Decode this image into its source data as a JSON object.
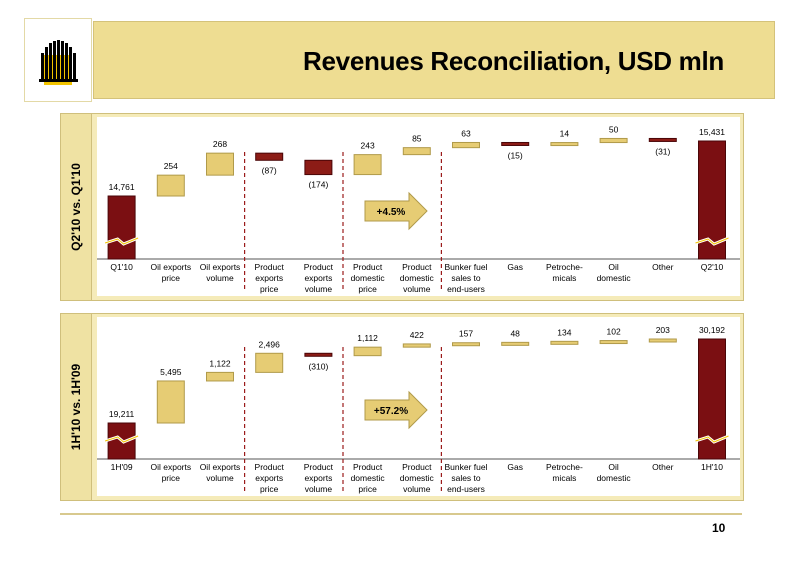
{
  "slide": {
    "title": "Revenues Reconciliation, USD mln",
    "page_number": "10",
    "colors": {
      "title_band": "#eedd92",
      "panel": "#f5ebb9",
      "bar_positive": "#e6cc74",
      "bar_negative": "#8c1c16",
      "bar_total": "#7b0f12",
      "divider": "#9b1b1b"
    }
  },
  "categories": [
    "Q1'10",
    "Oil exports price",
    "Oil exports volume",
    "Product exports price",
    "Product exports volume",
    "Product domestic price",
    "Product domestic volume",
    "Bunker fuel sales to end-users",
    "Gas",
    "Petroche-micals",
    "Oil domestic",
    "Other",
    "Q2'10"
  ],
  "chart_data": [
    {
      "type": "bar",
      "side_label": "Q2'10 vs. Q1'10",
      "categories": [
        "Q1'10",
        "Oil exports price",
        "Oil exports volume",
        "Product exports price",
        "Product exports volume",
        "Product domestic price",
        "Product domestic volume",
        "Bunker fuel sales to end-users",
        "Gas",
        "Petroche-micals",
        "Oil domestic",
        "Other",
        "Q2'10"
      ],
      "values": [
        14761,
        254,
        268,
        -87,
        -174,
        243,
        85,
        63,
        -15,
        14,
        50,
        -31,
        15431
      ],
      "value_labels": [
        "14,761",
        "254",
        "268",
        "(87)",
        "(174)",
        "243",
        "85",
        "63",
        "(15)",
        "14",
        "50",
        "(31)",
        "15,431"
      ],
      "growth_label": "+4.5%"
    },
    {
      "type": "bar",
      "side_label": "1H'10 vs. 1H'09",
      "categories": [
        "1H'09",
        "Oil exports price",
        "Oil exports volume",
        "Product exports price",
        "Product exports volume",
        "Product domestic price",
        "Product domestic volume",
        "Bunker fuel sales to end-users",
        "Gas",
        "Petroche-micals",
        "Oil domestic",
        "Other",
        "1H'10"
      ],
      "values": [
        19211,
        5495,
        1122,
        2496,
        -310,
        1112,
        422,
        157,
        48,
        134,
        102,
        203,
        30192
      ],
      "value_labels": [
        "19,211",
        "5,495",
        "1,122",
        "2,496",
        "(310)",
        "1,112",
        "422",
        "157",
        "48",
        "134",
        "102",
        "203",
        "30,192"
      ],
      "growth_label": "+57.2%"
    }
  ]
}
